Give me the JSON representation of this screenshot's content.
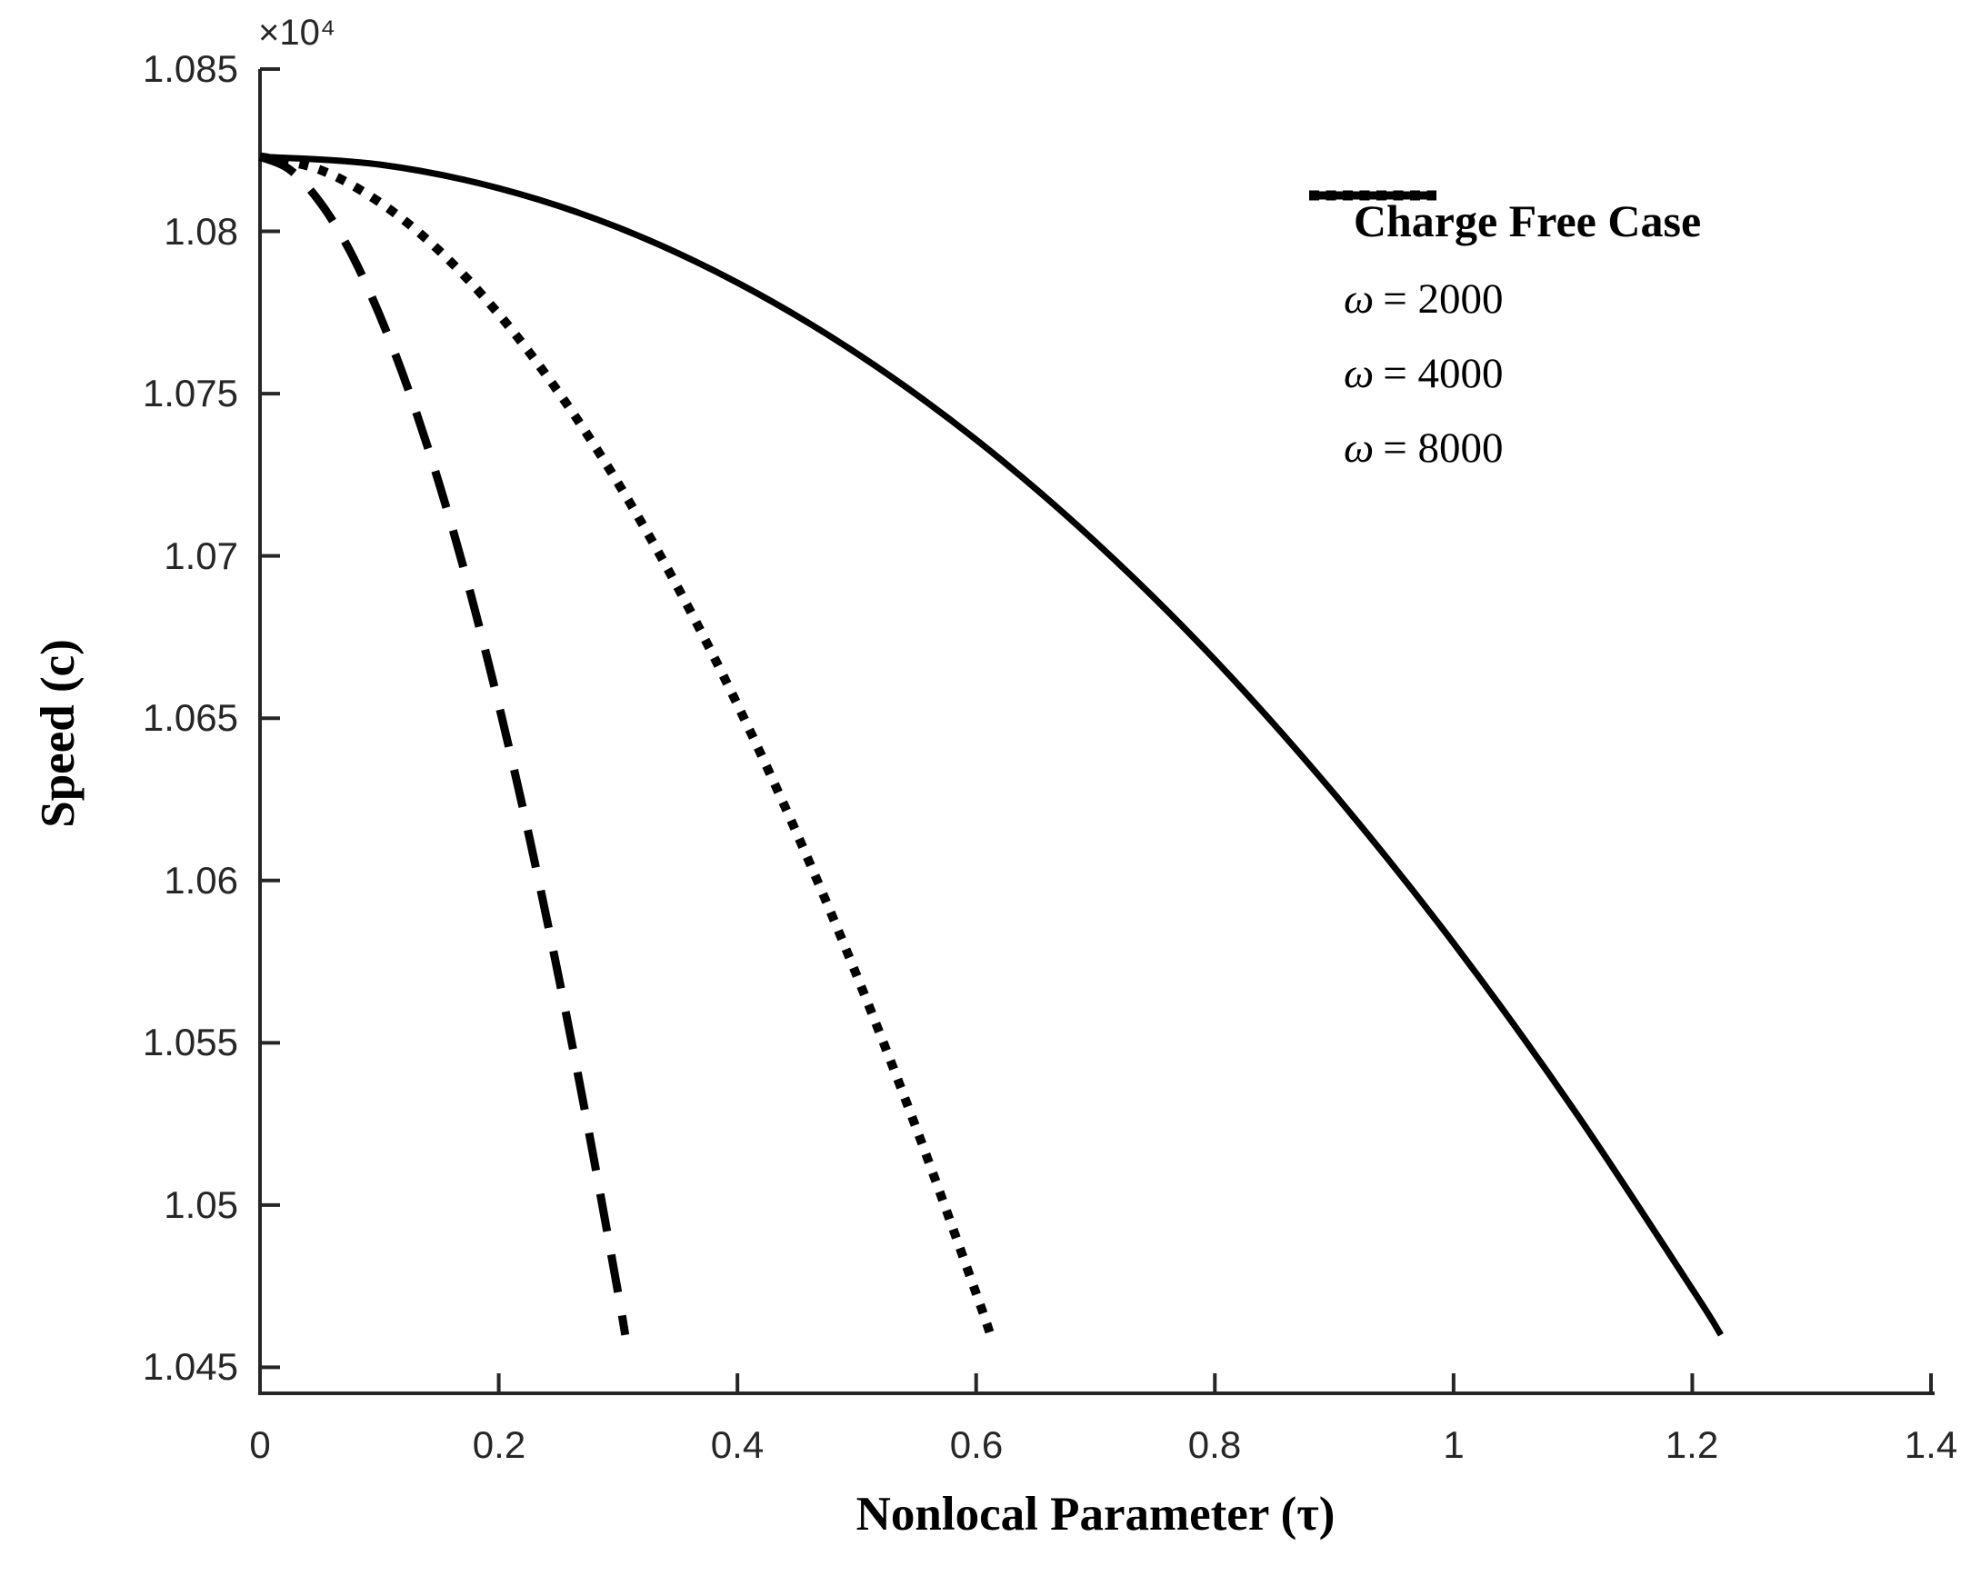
{
  "chart_data": {
    "type": "line",
    "title": "",
    "xlabel": "Nonlocal Parameter (τ)",
    "ylabel": "Speed (c)",
    "y_offset_label": "×10⁴",
    "xlim": [
      0,
      1.4
    ],
    "ylim": [
      10442,
      10850
    ],
    "grid": false,
    "axis_color": "#262626",
    "line_color": "#000000",
    "background_color": "#ffffff",
    "xtick_values": [
      0,
      0.2,
      0.4,
      0.6,
      0.8,
      1,
      1.2,
      1.4
    ],
    "xtick_labels": [
      "0",
      "0.2",
      "0.4",
      "0.6",
      "0.8",
      "1",
      "1.2",
      "1.4"
    ],
    "ytick_values": [
      10450,
      10500,
      10550,
      10600,
      10650,
      10700,
      10750,
      10800,
      10850
    ],
    "ytick_labels": [
      "1.045",
      "1.05",
      "1.055",
      "1.06",
      "1.065",
      "1.07",
      "1.075",
      "1.08",
      "1.085"
    ],
    "legend": {
      "title": "Charge Free Case",
      "position": "upper right",
      "entries": [
        {
          "symbol": "ω",
          "value": "= 2000",
          "style": "solid"
        },
        {
          "symbol": "ω",
          "value": "= 4000",
          "style": "dotted"
        },
        {
          "symbol": "ω",
          "value": "= 8000",
          "style": "dashed"
        }
      ]
    },
    "series": [
      {
        "id": "omega-2000",
        "name": "ω = 2000",
        "style": "solid",
        "points": [
          [
            0,
            10823
          ],
          [
            0.1,
            10820.6
          ],
          [
            0.2,
            10813.3
          ],
          [
            0.3,
            10801.2
          ],
          [
            0.4,
            10784.2
          ],
          [
            0.5,
            10762.4
          ],
          [
            0.6,
            10735.8
          ],
          [
            0.7,
            10704.3
          ],
          [
            0.8,
            10668.0
          ],
          [
            0.9,
            10626.7
          ],
          [
            1.0,
            10580.7
          ],
          [
            1.1,
            10529.8
          ],
          [
            1.2,
            10474.1
          ],
          [
            1.224,
            10460
          ]
        ]
      },
      {
        "id": "omega-4000",
        "name": "ω = 4000",
        "style": "dotted",
        "points": [
          [
            0,
            10823
          ],
          [
            0.05,
            10819.0
          ],
          [
            0.1,
            10809.0
          ],
          [
            0.15,
            10794.1
          ],
          [
            0.2,
            10774.5
          ],
          [
            0.25,
            10750.5
          ],
          [
            0.3,
            10722.4
          ],
          [
            0.35,
            10690.3
          ],
          [
            0.4,
            10654.2
          ],
          [
            0.45,
            10614.3
          ],
          [
            0.5,
            10570.7
          ],
          [
            0.55,
            10523.5
          ],
          [
            0.6,
            10472.8
          ],
          [
            0.612,
            10460
          ]
        ]
      },
      {
        "id": "omega-8000",
        "name": "ω = 8000",
        "style": "dashed",
        "points": [
          [
            0,
            10823
          ],
          [
            0.025,
            10819.0
          ],
          [
            0.05,
            10809.1
          ],
          [
            0.075,
            10794.2
          ],
          [
            0.1,
            10774.4
          ],
          [
            0.125,
            10750.5
          ],
          [
            0.15,
            10722.4
          ],
          [
            0.175,
            10690.3
          ],
          [
            0.2,
            10654.2
          ],
          [
            0.225,
            10614.4
          ],
          [
            0.25,
            10570.7
          ],
          [
            0.275,
            10523.6
          ],
          [
            0.3,
            10472.9
          ],
          [
            0.306,
            10460
          ]
        ]
      }
    ]
  }
}
